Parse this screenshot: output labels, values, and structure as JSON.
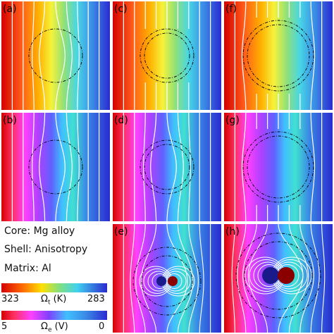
{
  "panels": [
    {
      "id": "a",
      "label": "(a)",
      "type": "thermal",
      "shell": "bulge",
      "inner_circle": false
    },
    {
      "id": "c",
      "label": "(c)",
      "type": "thermal",
      "shell": "straight",
      "inner_circle": true
    },
    {
      "id": "f",
      "label": "(f)",
      "type": "thermal",
      "shell": "repel",
      "inner_circle": true
    },
    {
      "id": "b",
      "label": "(b)",
      "type": "thermal",
      "shell": "bulge",
      "inner_circle": false
    },
    {
      "id": "d",
      "label": "(d)",
      "type": "thermal",
      "shell": "bulge",
      "inner_circle": true
    },
    {
      "id": "g",
      "label": "(g)",
      "type": "thermal",
      "shell": "repel",
      "inner_circle": true
    },
    {
      "id": "e",
      "label": "(e)",
      "type": "electric",
      "dipole": "small"
    },
    {
      "id": "h",
      "label": "(h)",
      "type": "electric",
      "dipole": "large"
    }
  ],
  "legend": {
    "core": "Core: Mg alloy",
    "shell": "Shell: Anisotropy",
    "matrix": "Matrix: Al"
  },
  "colorbars": [
    {
      "name": "thermal",
      "left_value": "323",
      "symbol": "Ω",
      "subscript": "t",
      "unit": "(K)",
      "right_value": "283"
    },
    {
      "name": "electric",
      "left_value": "5",
      "symbol": "Ω",
      "subscript": "e",
      "unit": "(V)",
      "right_value": "0"
    }
  ],
  "colors": {
    "red": "#d7191c",
    "orange": "#fdae61",
    "yellow": "#ffff33",
    "green": "#7fd97f",
    "cyan": "#66ddee",
    "blue": "#2b2bd6",
    "magenta": "#ff44ff",
    "isoline": "#ffffff",
    "boundary": "#000000"
  }
}
